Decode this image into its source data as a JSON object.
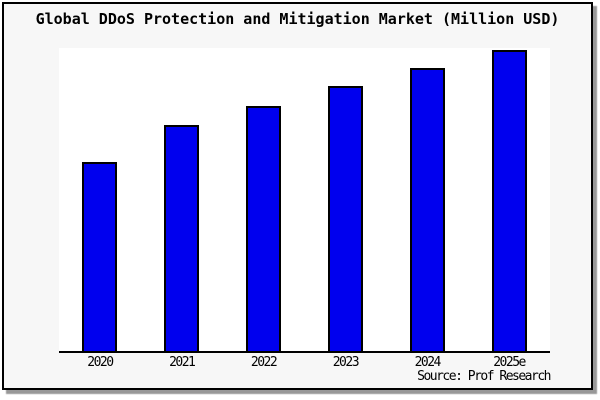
{
  "chart_data": {
    "type": "bar",
    "title": "Global DDoS Protection and Mitigation Market (Million USD)",
    "categories": [
      "2020",
      "2021",
      "2022",
      "2023",
      "2024",
      "2025e"
    ],
    "values": [
      62.8,
      75.0,
      81.4,
      88.0,
      93.9,
      100
    ],
    "value_scale": "relative index estimated from bar heights; tallest bar (2025e) = 100; no y-axis tick labels are shown in the chart",
    "unit": "Million USD",
    "xlabel": "",
    "ylabel": "",
    "ylim": [
      0,
      100
    ],
    "grid": false,
    "y_axis_visible": false,
    "legend": "none",
    "source": "Source: Prof Research",
    "colors": {
      "bar_fill": "#0000ee",
      "bar_edge": "#000000",
      "plot_background": "#ffffff",
      "frame_background": "#f7f7f7",
      "border": "#000000",
      "text": "#000000",
      "shadow": "#989898"
    }
  }
}
